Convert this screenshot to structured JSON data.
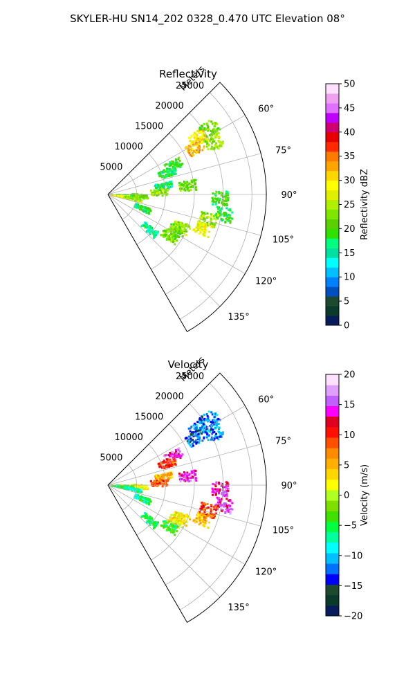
{
  "figure": {
    "title": "SKYLER-HU  SN14_202  0328_0.470 UTC Elevation 08°"
  },
  "chart_data": [
    {
      "type": "heatmap",
      "title": "Reflectivity",
      "radial_axis_label": "Meters",
      "range_ticks": [
        5000,
        10000,
        15000,
        20000,
        25000
      ],
      "range_tick_labels": [
        "5000",
        "10000",
        "15000",
        "20000",
        "25000"
      ],
      "rmax": 27500,
      "azimuth_range_deg": [
        45,
        150
      ],
      "azimuth_ticks": [
        60,
        75,
        90,
        105,
        120,
        135
      ],
      "azimuth_tick_labels": [
        "60°",
        "75°",
        "90°",
        "105°",
        "120°",
        "135°"
      ],
      "grid": true,
      "colorbar": {
        "label": "Reflectivity dBZ",
        "vmin": 0,
        "vmax": 50,
        "ticks": [
          0,
          5,
          10,
          15,
          20,
          25,
          30,
          35,
          40,
          45,
          50
        ],
        "tick_labels": [
          "0",
          "5",
          "10",
          "15",
          "20",
          "25",
          "30",
          "35",
          "40",
          "45",
          "50"
        ],
        "colors": [
          "#081c5c",
          "#0a3b2a",
          "#1d4a2f",
          "#004fbf",
          "#0080ff",
          "#00c0ff",
          "#00ffff",
          "#00e0a0",
          "#00ff7f",
          "#2fe000",
          "#5ad000",
          "#7fe600",
          "#b0f000",
          "#e0f000",
          "#ffff00",
          "#ffd700",
          "#ffa500",
          "#ff7a00",
          "#ff2a00",
          "#e60000",
          "#d00070",
          "#c000ff",
          "#e070ff",
          "#f0a0f0",
          "#ffe0ff"
        ]
      },
      "echoes": [
        {
          "az": 57,
          "r": 21000,
          "v": 22
        },
        {
          "az": 58,
          "r": 18500,
          "v": 30
        },
        {
          "az": 62,
          "r": 17200,
          "v": 32
        },
        {
          "az": 64,
          "r": 20500,
          "v": 24
        },
        {
          "az": 66,
          "r": 12500,
          "v": 20
        },
        {
          "az": 70,
          "r": 11000,
          "v": 18
        },
        {
          "az": 82,
          "r": 9800,
          "v": 16
        },
        {
          "az": 84,
          "r": 14000,
          "v": 22
        },
        {
          "az": 88,
          "r": 9000,
          "v": 24
        },
        {
          "az": 93,
          "r": 5500,
          "v": 22
        },
        {
          "az": 95,
          "r": 3000,
          "v": 20
        },
        {
          "az": 98,
          "r": 2200,
          "v": 28
        },
        {
          "az": 100,
          "r": 4500,
          "v": 24
        },
        {
          "az": 92,
          "r": 19500,
          "v": 20
        },
        {
          "az": 100,
          "r": 20500,
          "v": 18
        },
        {
          "az": 104,
          "r": 18000,
          "v": 24
        },
        {
          "az": 110,
          "r": 17500,
          "v": 28
        },
        {
          "az": 114,
          "r": 14000,
          "v": 24
        },
        {
          "az": 118,
          "r": 13500,
          "v": 22
        },
        {
          "az": 124,
          "r": 13000,
          "v": 22
        },
        {
          "az": 112,
          "r": 6500,
          "v": 18
        },
        {
          "az": 130,
          "r": 9500,
          "v": 16
        }
      ]
    },
    {
      "type": "heatmap",
      "title": "Velocity",
      "radial_axis_label": "Meters",
      "range_ticks": [
        5000,
        10000,
        15000,
        20000,
        25000
      ],
      "range_tick_labels": [
        "5000",
        "10000",
        "15000",
        "20000",
        "25000"
      ],
      "rmax": 27500,
      "azimuth_range_deg": [
        45,
        150
      ],
      "azimuth_ticks": [
        60,
        75,
        90,
        105,
        120,
        135
      ],
      "azimuth_tick_labels": [
        "60°",
        "75°",
        "90°",
        "105°",
        "120°",
        "135°"
      ],
      "grid": true,
      "colorbar": {
        "label": "Velocity (m/s)",
        "vmin": -20,
        "vmax": 20,
        "ticks": [
          -20,
          -15,
          -10,
          -5,
          0,
          5,
          10,
          15,
          20
        ],
        "tick_labels": [
          "−20",
          "−15",
          "−10",
          "−5",
          "0",
          "5",
          "10",
          "15",
          "20"
        ],
        "colors": [
          "#081c5c",
          "#0a3b2a",
          "#1d4a2f",
          "#0000ff",
          "#0070ff",
          "#00c0ff",
          "#00ffff",
          "#00ff9f",
          "#00ff40",
          "#40e000",
          "#7fe000",
          "#b0ff20",
          "#ffff00",
          "#ffd700",
          "#ffb000",
          "#ff8c00",
          "#ff5000",
          "#ff1000",
          "#e00020",
          "#ff00ff",
          "#c060ff",
          "#e0a0ff",
          "#ffe0ff"
        ]
      },
      "echoes": [
        {
          "az": 57,
          "r": 21000,
          "v": -12
        },
        {
          "az": 58,
          "r": 18500,
          "v": -11
        },
        {
          "az": 62,
          "r": 17200,
          "v": -13
        },
        {
          "az": 64,
          "r": 20500,
          "v": -12
        },
        {
          "az": 66,
          "r": 12500,
          "v": 15
        },
        {
          "az": 70,
          "r": 11000,
          "v": 10
        },
        {
          "az": 82,
          "r": 9800,
          "v": 5
        },
        {
          "az": 84,
          "r": 14000,
          "v": 15
        },
        {
          "az": 88,
          "r": 9000,
          "v": 9
        },
        {
          "az": 93,
          "r": 5500,
          "v": 2
        },
        {
          "az": 95,
          "r": 3000,
          "v": -3
        },
        {
          "az": 98,
          "r": 2200,
          "v": -5
        },
        {
          "az": 100,
          "r": 4500,
          "v": -7
        },
        {
          "az": 92,
          "r": 19500,
          "v": 14
        },
        {
          "az": 100,
          "r": 20500,
          "v": 14
        },
        {
          "az": 104,
          "r": 18000,
          "v": 10
        },
        {
          "az": 110,
          "r": 17500,
          "v": 5
        },
        {
          "az": 114,
          "r": 14000,
          "v": 3
        },
        {
          "az": 118,
          "r": 13500,
          "v": 2
        },
        {
          "az": 124,
          "r": 13000,
          "v": -4
        },
        {
          "az": 112,
          "r": 6500,
          "v": -6
        },
        {
          "az": 130,
          "r": 9500,
          "v": -5
        }
      ]
    }
  ]
}
